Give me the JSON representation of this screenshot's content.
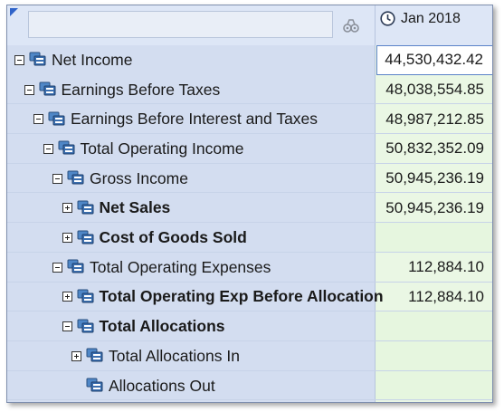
{
  "header": {
    "filter_placeholder": "",
    "filter_icon": "filter-icon",
    "period_icon": "clock-icon",
    "period_label": "Jan 2018"
  },
  "colors": {
    "tree_background": "#d3ddf0",
    "value_background": "#eaf7e4",
    "selected_cell_border": "#5a82c8"
  },
  "rows": [
    {
      "label": "Net Income",
      "depth": 0,
      "expander": "minus",
      "bold": false,
      "value": "44,530,432.42",
      "selected": true
    },
    {
      "label": "Earnings Before Taxes",
      "depth": 1,
      "expander": "minus",
      "bold": false,
      "value": "48,038,554.85"
    },
    {
      "label": "Earnings Before Interest and Taxes",
      "depth": 2,
      "expander": "minus",
      "bold": false,
      "value": "48,987,212.85"
    },
    {
      "label": "Total Operating Income",
      "depth": 3,
      "expander": "minus",
      "bold": false,
      "value": "50,832,352.09"
    },
    {
      "label": "Gross Income",
      "depth": 4,
      "expander": "minus",
      "bold": false,
      "value": "50,945,236.19"
    },
    {
      "label": "Net Sales",
      "depth": 5,
      "expander": "plus",
      "bold": true,
      "value": "50,945,236.19"
    },
    {
      "label": "Cost of Goods Sold",
      "depth": 5,
      "expander": "plus",
      "bold": true,
      "value": ""
    },
    {
      "label": "Total Operating Expenses",
      "depth": 4,
      "expander": "minus",
      "bold": false,
      "value": "112,884.10"
    },
    {
      "label": "Total Operating Exp Before Allocation",
      "depth": 5,
      "expander": "plus",
      "bold": true,
      "value": "112,884.10"
    },
    {
      "label": "Total Allocations",
      "depth": 5,
      "expander": "minus",
      "bold": true,
      "value": ""
    },
    {
      "label": "Total Allocations In",
      "depth": 6,
      "expander": "plus",
      "bold": false,
      "value": ""
    },
    {
      "label": "Allocations Out",
      "depth": 6,
      "expander": "none",
      "bold": false,
      "value": ""
    }
  ]
}
